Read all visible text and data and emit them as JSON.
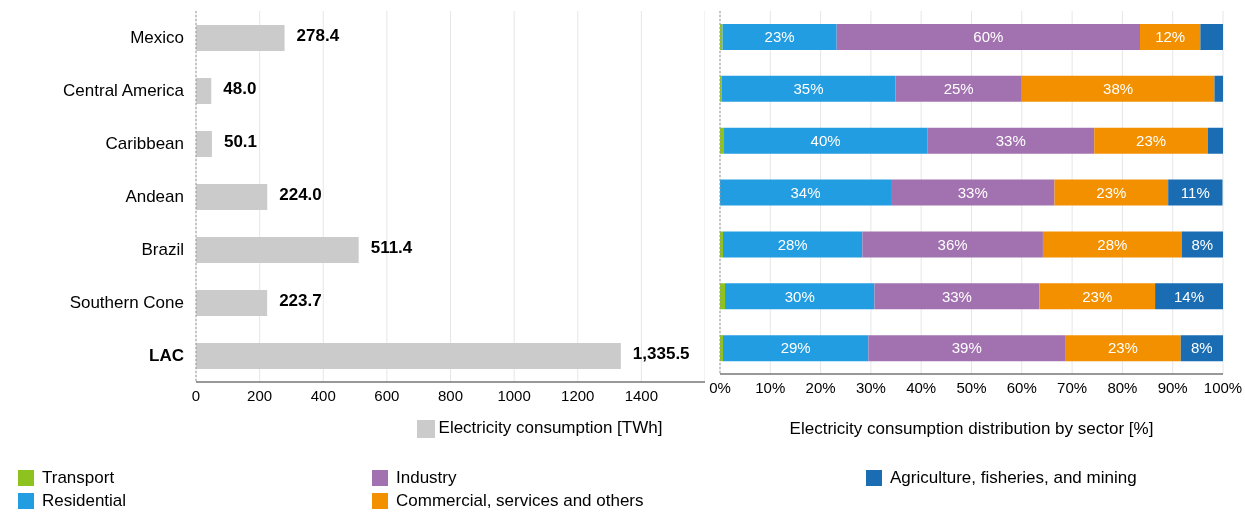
{
  "chart_data": [
    {
      "type": "bar",
      "orientation": "horizontal",
      "categories": [
        "Mexico",
        "Central America",
        "Caribbean",
        "Andean",
        "Brazil",
        "Southern Cone",
        "LAC"
      ],
      "series": [
        {
          "name": "Electricity consumption [TWh]",
          "color": "#cbcbcb",
          "values": [
            278.4,
            48.0,
            50.1,
            224.0,
            511.4,
            223.7,
            1335.5
          ],
          "value_labels": [
            "278.4",
            "48.0",
            "50.1",
            "224.0",
            "511.4",
            "223.7",
            "1,335.5"
          ]
        }
      ],
      "xlim": [
        0,
        1600
      ],
      "xticks": [
        0,
        200,
        400,
        600,
        800,
        1000,
        1200,
        1400
      ],
      "grid": "x",
      "legend": "bottom"
    },
    {
      "type": "bar",
      "orientation": "horizontal",
      "stacked": true,
      "categories": [
        null,
        null,
        null,
        null,
        null,
        null,
        null
      ],
      "xlabel": "Electricity consumption distribution by sector [%]",
      "series": [
        {
          "name": "Transport",
          "color": "#8dc21f",
          "values": [
            0.5,
            0.3,
            0.8,
            null,
            0.6,
            1.0,
            0.6
          ],
          "value_labels": [
            null,
            null,
            null,
            null,
            null,
            null,
            null
          ]
        },
        {
          "name": "Residential",
          "color": "#239de1",
          "values": [
            22.7,
            34.6,
            40.4,
            34.0,
            27.7,
            29.7,
            28.9
          ],
          "value_labels": [
            "23%",
            "35%",
            "40%",
            "34%",
            "28%",
            "30%",
            "29%"
          ]
        },
        {
          "name": "Industry",
          "color": "#a272b0",
          "values": [
            60.3,
            25.1,
            33.2,
            32.5,
            35.9,
            32.8,
            39.1
          ],
          "value_labels": [
            "60%",
            "25%",
            "33%",
            "33%",
            "36%",
            "33%",
            "39%"
          ]
        },
        {
          "name": "Commercial, services and others",
          "color": "#f39000",
          "values": [
            12.0,
            38.3,
            22.6,
            22.6,
            27.6,
            23.0,
            23.0
          ],
          "value_labels": [
            "12%",
            "38%",
            "23%",
            "23%",
            "28%",
            "23%",
            "23%"
          ]
        },
        {
          "name": "Agriculture, fisheries, and mining",
          "color": "#1a6db3",
          "values": [
            4.5,
            1.7,
            3.0,
            10.8,
            8.2,
            13.5,
            8.4
          ],
          "value_labels": [
            null,
            null,
            null,
            "11%",
            "8%",
            "14%",
            "8%"
          ]
        }
      ],
      "xlim": [
        0,
        100
      ],
      "xticks": [
        {
          "value": 0,
          "label": "0%"
        },
        {
          "value": 10,
          "label": "10%"
        },
        {
          "value": 20,
          "label": "20%"
        },
        {
          "value": 30,
          "label": "30%"
        },
        {
          "value": 40,
          "label": "40%"
        },
        {
          "value": 50,
          "label": "50%"
        },
        {
          "value": 60,
          "label": "60%"
        },
        {
          "value": 70,
          "label": "70%"
        },
        {
          "value": 80,
          "label": "80%"
        },
        {
          "value": 90,
          "label": "90%"
        },
        {
          "value": 100,
          "label": "100%"
        }
      ],
      "grid": "x",
      "tick_labels": "x",
      "legend": "bottom"
    }
  ]
}
